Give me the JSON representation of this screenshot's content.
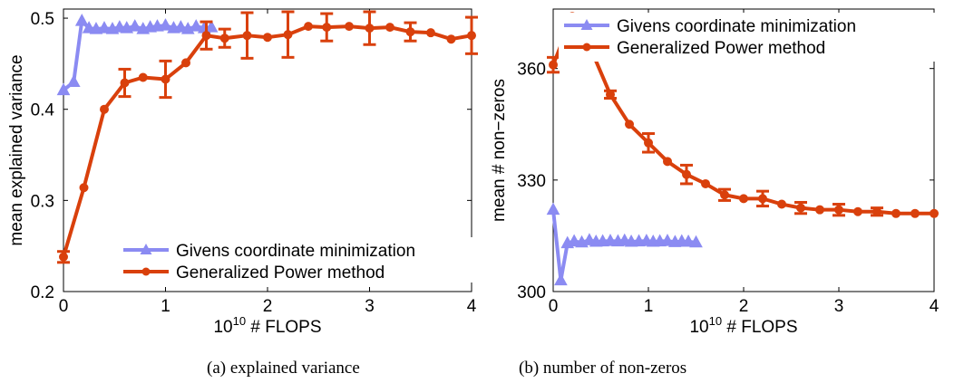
{
  "chart_data": [
    {
      "type": "line",
      "caption": "(a) explained variance",
      "title": "",
      "xlabel_base": "10",
      "xlabel_exp": "10",
      "xlabel_rest": " # FLOPS",
      "ylabel": "mean explained variance",
      "xlim": [
        0,
        4
      ],
      "ylim": [
        0.2,
        0.51
      ],
      "xticks": [
        0,
        1,
        2,
        3,
        4
      ],
      "xtick_labels": [
        "0",
        "1",
        "2",
        "3",
        "4"
      ],
      "yticks": [
        0.2,
        0.3,
        0.4,
        0.5
      ],
      "ytick_labels": [
        "0.2",
        "0.3",
        "0.4",
        "0.5"
      ],
      "grid": false,
      "legend_position": "bottom-right",
      "series": [
        {
          "name": "Givens coordinate minimization",
          "color": "#8b8bf2",
          "marker": "triangle",
          "x": [
            0.0,
            0.1,
            0.18,
            0.25,
            0.32,
            0.4,
            0.48,
            0.55,
            0.62,
            0.7,
            0.78,
            0.85,
            0.92,
            1.0,
            1.08,
            1.15,
            1.22,
            1.3,
            1.38,
            1.45
          ],
          "y": [
            0.421,
            0.43,
            0.497,
            0.489,
            0.488,
            0.489,
            0.488,
            0.49,
            0.489,
            0.491,
            0.488,
            0.49,
            0.491,
            0.492,
            0.489,
            0.49,
            0.488,
            0.491,
            0.489,
            0.49
          ]
        },
        {
          "name": "Generalized Power method",
          "color": "#d9400c",
          "marker": "circle",
          "x": [
            0.0,
            0.2,
            0.4,
            0.6,
            0.78,
            1.0,
            1.2,
            1.4,
            1.58,
            1.8,
            2.0,
            2.2,
            2.4,
            2.58,
            2.8,
            3.0,
            3.2,
            3.4,
            3.6,
            3.8,
            4.0
          ],
          "y": [
            0.238,
            0.314,
            0.4,
            0.429,
            0.435,
            0.433,
            0.451,
            0.481,
            0.478,
            0.481,
            0.479,
            0.482,
            0.491,
            0.49,
            0.491,
            0.489,
            0.49,
            0.485,
            0.484,
            0.477,
            0.481
          ],
          "err": [
            0.006,
            0,
            0,
            0.015,
            0,
            0.02,
            0,
            0.015,
            0.01,
            0.025,
            0,
            0.025,
            0,
            0.015,
            0,
            0.018,
            0,
            0.01,
            0,
            0,
            0.02
          ]
        }
      ]
    },
    {
      "type": "line",
      "caption": "(b) number of non-zeros",
      "title": "",
      "xlabel_base": "10",
      "xlabel_exp": "10",
      "xlabel_rest": " # FLOPS",
      "ylabel": "mean # non−zeros",
      "xlim": [
        0,
        4
      ],
      "ylim": [
        300,
        376
      ],
      "xticks": [
        0,
        1,
        2,
        3,
        4
      ],
      "xtick_labels": [
        "0",
        "1",
        "2",
        "3",
        "4"
      ],
      "yticks": [
        300,
        330,
        360
      ],
      "ytick_labels": [
        "300",
        "330",
        "360"
      ],
      "grid": false,
      "legend_position": "top-right",
      "series": [
        {
          "name": "Givens coordinate minimization",
          "color": "#8b8bf2",
          "marker": "triangle",
          "x": [
            0.0,
            0.08,
            0.15,
            0.22,
            0.3,
            0.38,
            0.45,
            0.52,
            0.6,
            0.68,
            0.75,
            0.82,
            0.9,
            0.98,
            1.05,
            1.12,
            1.2,
            1.28,
            1.35,
            1.42,
            1.5
          ],
          "y": [
            322,
            303,
            313,
            313.5,
            313.2,
            313.8,
            313.4,
            313.5,
            313.6,
            313.5,
            313.7,
            313.4,
            313.5,
            313.6,
            313.4,
            313.5,
            313.6,
            313.3,
            313.5,
            313.4,
            313.2
          ]
        },
        {
          "name": "Generalized Power method",
          "color": "#d9400c",
          "marker": "circle",
          "x": [
            0.0,
            0.2,
            0.4,
            0.6,
            0.8,
            1.0,
            1.2,
            1.4,
            1.6,
            1.8,
            2.0,
            2.2,
            2.4,
            2.6,
            2.8,
            3.0,
            3.2,
            3.4,
            3.6,
            3.8,
            4.0
          ],
          "y": [
            361,
            374,
            365,
            353,
            345,
            340,
            335,
            331.5,
            329,
            326,
            325,
            325,
            323.5,
            322.5,
            322,
            322,
            321.5,
            321.5,
            321,
            321,
            321
          ],
          "err": [
            2,
            0,
            0,
            1,
            0,
            2.5,
            0,
            2.5,
            0,
            1.5,
            0,
            2,
            0,
            1.5,
            0,
            1.5,
            0,
            1,
            0,
            0,
            0
          ]
        }
      ]
    }
  ]
}
